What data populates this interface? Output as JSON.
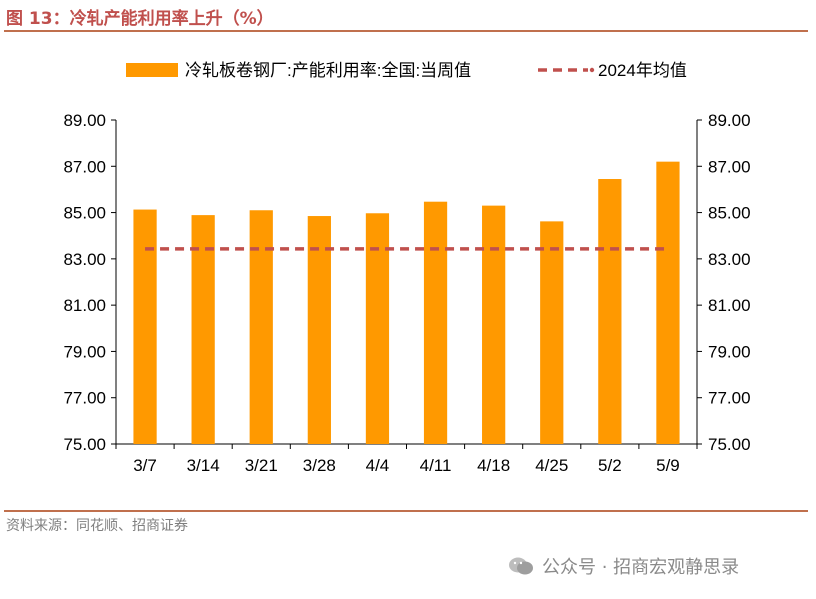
{
  "figure": {
    "title": "图 13：冷轧产能利用率上升（%）",
    "source": "资料来源：同花顺、招商证券",
    "watermark": "公众号 · 招商宏观静思录"
  },
  "colors": {
    "bar": "#ff9900",
    "avg_line": "#c0504d",
    "rule": "#c0704d",
    "title": "#c0504d"
  },
  "chart_data": {
    "type": "bar",
    "categories": [
      "3/7",
      "3/14",
      "3/21",
      "3/28",
      "4/4",
      "4/11",
      "4/18",
      "4/25",
      "5/2",
      "5/9"
    ],
    "series": [
      {
        "name": "冷轧板卷钢厂:产能利用率:全国:当周值",
        "type": "bar",
        "values": [
          85.13,
          84.89,
          85.1,
          84.85,
          84.97,
          85.47,
          85.3,
          84.62,
          86.45,
          87.2
        ]
      },
      {
        "name": "2024年均值",
        "type": "line",
        "style": "dashed",
        "values": [
          83.43,
          83.43,
          83.43,
          83.43,
          83.43,
          83.43,
          83.43,
          83.43,
          83.43,
          83.43
        ]
      }
    ],
    "ylim": [
      75,
      89
    ],
    "yticks": [
      "75.00",
      "77.00",
      "79.00",
      "81.00",
      "83.00",
      "85.00",
      "87.00",
      "89.00"
    ],
    "secondary_yticks": [
      "75.00",
      "77.00",
      "79.00",
      "81.00",
      "83.00",
      "85.00",
      "87.00",
      "89.00"
    ],
    "legend_position": "top",
    "grid": false
  }
}
